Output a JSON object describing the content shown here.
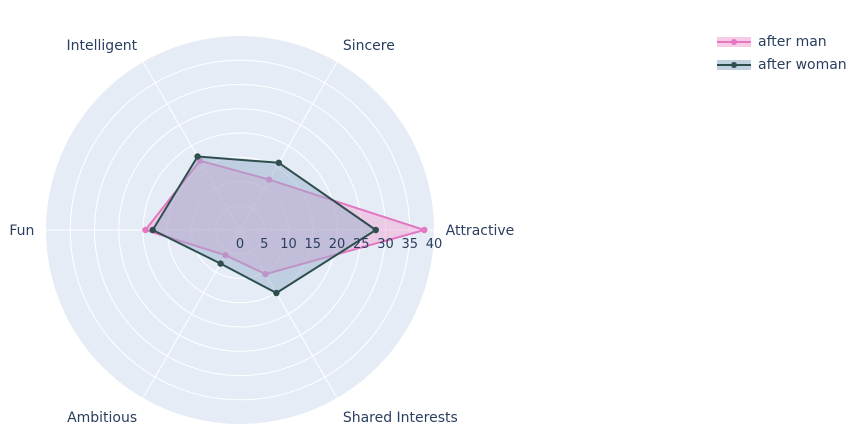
{
  "chart_data": {
    "type": "radar",
    "categories": [
      "Attractive",
      "Sincere",
      "Intelligent",
      "Fun",
      "Ambitious",
      "Shared Interests"
    ],
    "radial_range": [
      0,
      40
    ],
    "radial_ticks": [
      "0",
      "5",
      "10",
      "15",
      "20",
      "25",
      "30",
      "35",
      "40"
    ],
    "series": [
      {
        "name": "after man",
        "values": [
          38,
          12,
          16.5,
          19.5,
          6,
          10.5
        ],
        "color": "#e377c2",
        "fill": "#f2a8d6"
      },
      {
        "name": "after woman",
        "values": [
          28,
          16,
          17.5,
          18,
          8,
          15
        ],
        "color": "#2f4f4f",
        "fill": "#9ab2cc"
      }
    ],
    "legend_position": "top-right",
    "grid": true
  }
}
